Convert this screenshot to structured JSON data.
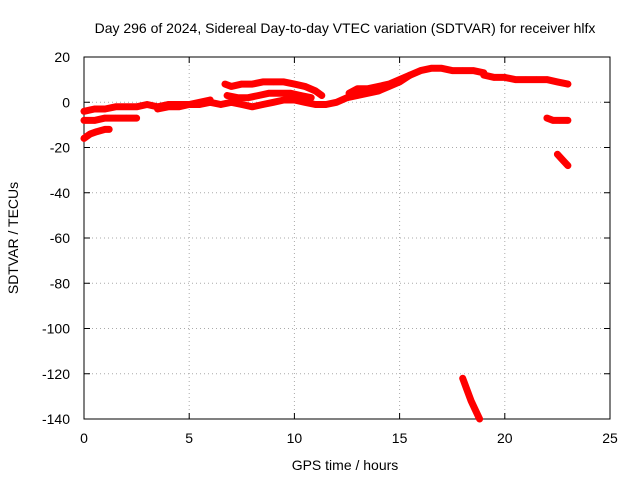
{
  "chart_data": {
    "type": "scatter",
    "title": "Day 296 of 2024, Sidereal Day-to-day VTEC variation (SDTVAR) for receiver hlfx",
    "xlabel": "GPS time / hours",
    "ylabel": "SDTVAR / TECUs",
    "xlim": [
      0,
      25
    ],
    "ylim": [
      -140,
      20
    ],
    "xticks": [
      "0",
      "5",
      "10",
      "15",
      "20",
      "25"
    ],
    "yticks": [
      "20",
      "0",
      "-20",
      "-40",
      "-60",
      "-80",
      "-100",
      "-120",
      "-140"
    ],
    "grid": true,
    "legend": "none",
    "series_color": "#ff0000",
    "series": [
      {
        "points": [
          [
            0.0,
            -4
          ],
          [
            0.5,
            -3
          ],
          [
            1.0,
            -3
          ],
          [
            1.5,
            -2
          ],
          [
            2.0,
            -2
          ],
          [
            2.5,
            -2
          ],
          [
            3.0,
            -1
          ],
          [
            3.5,
            -2
          ],
          [
            4.0,
            -1
          ],
          [
            4.5,
            -1
          ],
          [
            5.0,
            -1
          ],
          [
            5.5,
            -1
          ],
          [
            6.0,
            0
          ],
          [
            6.5,
            -1
          ],
          [
            7.0,
            0
          ],
          [
            7.5,
            -1
          ],
          [
            8.0,
            -2
          ],
          [
            8.5,
            -1
          ],
          [
            9.0,
            0
          ],
          [
            9.5,
            1
          ],
          [
            10.0,
            1
          ],
          [
            10.5,
            0
          ],
          [
            11.0,
            -1
          ],
          [
            11.5,
            -1
          ],
          [
            12.0,
            0
          ],
          [
            12.5,
            2
          ],
          [
            13.0,
            3
          ],
          [
            13.5,
            4
          ],
          [
            14.0,
            5
          ],
          [
            14.5,
            7
          ],
          [
            15.0,
            9
          ],
          [
            15.5,
            12
          ],
          [
            16.0,
            14
          ],
          [
            16.5,
            15
          ],
          [
            17.0,
            15
          ],
          [
            17.5,
            14
          ],
          [
            18.0,
            14
          ],
          [
            18.5,
            14
          ],
          [
            19.0,
            13
          ]
        ]
      },
      {
        "points": [
          [
            0.0,
            -8
          ],
          [
            0.5,
            -8
          ],
          [
            1.0,
            -7
          ],
          [
            1.5,
            -7
          ],
          [
            2.0,
            -7
          ],
          [
            2.5,
            -7
          ]
        ]
      },
      {
        "points": [
          [
            0.0,
            -16
          ],
          [
            0.3,
            -14
          ],
          [
            0.6,
            -13
          ],
          [
            1.0,
            -12
          ],
          [
            1.2,
            -12
          ]
        ]
      },
      {
        "points": [
          [
            3.5,
            -3
          ],
          [
            4.0,
            -2
          ],
          [
            4.5,
            -2
          ],
          [
            5.0,
            -1
          ],
          [
            5.5,
            0
          ],
          [
            6.0,
            1
          ]
        ]
      },
      {
        "points": [
          [
            6.7,
            8
          ],
          [
            7.0,
            7
          ],
          [
            7.5,
            8
          ],
          [
            8.0,
            8
          ],
          [
            8.5,
            9
          ],
          [
            9.0,
            9
          ],
          [
            9.5,
            9
          ],
          [
            10.0,
            8
          ],
          [
            10.5,
            7
          ],
          [
            11.0,
            5
          ],
          [
            11.3,
            3
          ]
        ]
      },
      {
        "points": [
          [
            6.8,
            3
          ],
          [
            7.3,
            2
          ],
          [
            7.8,
            2
          ],
          [
            8.3,
            3
          ],
          [
            8.8,
            4
          ],
          [
            9.3,
            4
          ],
          [
            9.8,
            4
          ],
          [
            10.3,
            3
          ],
          [
            10.8,
            2
          ]
        ]
      },
      {
        "points": [
          [
            12.6,
            4
          ],
          [
            13.0,
            6
          ],
          [
            13.5,
            6
          ],
          [
            14.0,
            7
          ],
          [
            14.5,
            8
          ],
          [
            15.0,
            10
          ],
          [
            15.5,
            12
          ]
        ]
      },
      {
        "points": [
          [
            19.0,
            12
          ],
          [
            19.5,
            11
          ],
          [
            20.0,
            11
          ],
          [
            20.5,
            10
          ],
          [
            21.0,
            10
          ],
          [
            21.5,
            10
          ],
          [
            22.0,
            10
          ],
          [
            22.5,
            9
          ],
          [
            23.0,
            8
          ]
        ]
      },
      {
        "points": [
          [
            22.0,
            -7
          ],
          [
            22.3,
            -8
          ],
          [
            22.6,
            -8
          ],
          [
            23.0,
            -8
          ]
        ]
      },
      {
        "points": [
          [
            22.5,
            -23
          ],
          [
            22.8,
            -26
          ],
          [
            23.0,
            -28
          ]
        ]
      },
      {
        "points": [
          [
            18.0,
            -122
          ],
          [
            18.2,
            -127
          ],
          [
            18.4,
            -132
          ],
          [
            18.6,
            -136
          ],
          [
            18.8,
            -140
          ]
        ]
      }
    ]
  }
}
